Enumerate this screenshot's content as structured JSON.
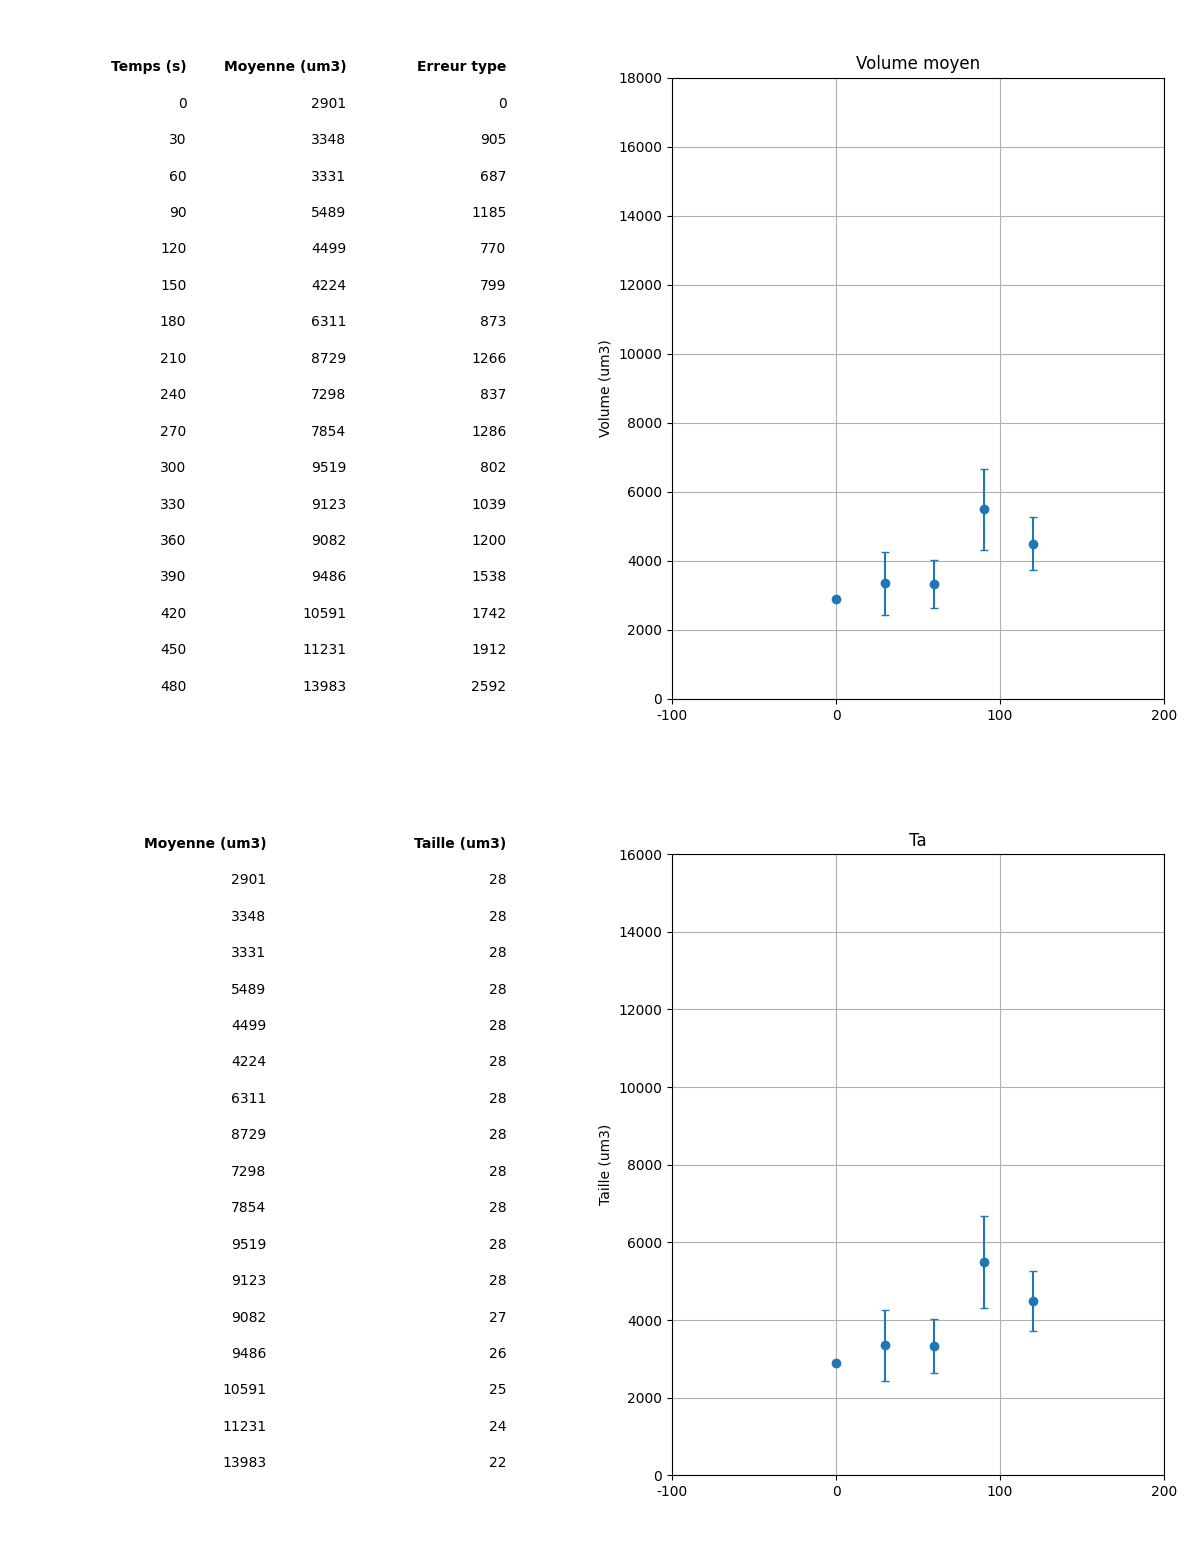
{
  "chart_data": [
    {
      "type": "table",
      "columns": [
        "Temps (s)",
        "Moyenne (um3)",
        "Erreur type"
      ],
      "rows": [
        [
          0,
          2901,
          0
        ],
        [
          30,
          3348,
          905
        ],
        [
          60,
          3331,
          687
        ],
        [
          90,
          5489,
          1185
        ],
        [
          120,
          4499,
          770
        ],
        [
          150,
          4224,
          799
        ],
        [
          180,
          6311,
          873
        ],
        [
          210,
          8729,
          1266
        ],
        [
          240,
          7298,
          837
        ],
        [
          270,
          7854,
          1286
        ],
        [
          300,
          9519,
          802
        ],
        [
          330,
          9123,
          1039
        ],
        [
          360,
          9082,
          1200
        ],
        [
          390,
          9486,
          1538
        ],
        [
          420,
          10591,
          1742
        ],
        [
          450,
          11231,
          1912
        ],
        [
          480,
          13983,
          2592
        ]
      ]
    },
    {
      "type": "scatter",
      "title": "Volume moyen",
      "y_label": "Volume (um3)",
      "x": [
        0,
        30,
        60,
        90,
        120
      ],
      "values": [
        2901,
        3348,
        3331,
        5489,
        4499
      ],
      "errors": [
        0,
        905,
        687,
        1185,
        770
      ],
      "xlim": [
        -100,
        200
      ],
      "xticks": [
        -100,
        0,
        100,
        200
      ],
      "ylim": [
        0,
        18000
      ],
      "yticks": [
        0,
        2000,
        4000,
        6000,
        8000,
        10000,
        12000,
        14000,
        16000,
        18000
      ],
      "grid": true
    },
    {
      "type": "table",
      "columns": [
        "Moyenne (um3)",
        "Taille (um3)"
      ],
      "rows": [
        [
          2901,
          28
        ],
        [
          3348,
          28
        ],
        [
          3331,
          28
        ],
        [
          5489,
          28
        ],
        [
          4499,
          28
        ],
        [
          4224,
          28
        ],
        [
          6311,
          28
        ],
        [
          8729,
          28
        ],
        [
          7298,
          28
        ],
        [
          7854,
          28
        ],
        [
          9519,
          28
        ],
        [
          9123,
          28
        ],
        [
          9082,
          27
        ],
        [
          9486,
          26
        ],
        [
          10591,
          25
        ],
        [
          11231,
          24
        ],
        [
          13983,
          22
        ]
      ]
    },
    {
      "type": "scatter",
      "title": "Ta",
      "y_label": "Taille (um3)",
      "x": [
        0,
        30,
        60,
        90,
        120
      ],
      "values": [
        2901,
        3348,
        3331,
        5489,
        4499
      ],
      "errors": [
        0,
        905,
        687,
        1185,
        770
      ],
      "xlim": [
        -100,
        200
      ],
      "xticks": [
        -100,
        0,
        100,
        200
      ],
      "ylim": [
        0,
        16000
      ],
      "yticks": [
        0,
        2000,
        4000,
        6000,
        8000,
        10000,
        12000,
        14000,
        16000
      ],
      "grid": true
    }
  ]
}
